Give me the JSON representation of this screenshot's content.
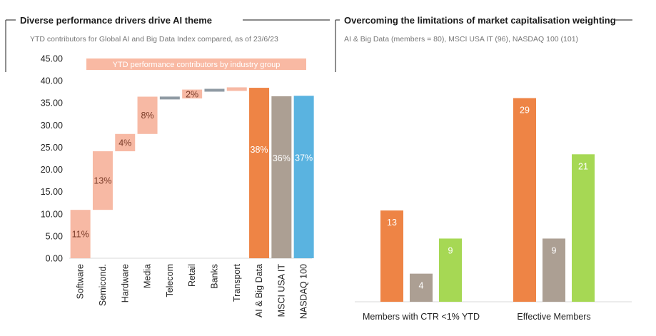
{
  "left_panel": {
    "title": "Diverse performance drivers drive AI theme",
    "subtitle": "YTD contributors for Global AI and Big Data Index compared, as of 23/6/23",
    "banner": "YTD performance contributors by industry group"
  },
  "right_panel": {
    "title": "Overcoming the limitations of market capitalisation weighting",
    "subtitle": "AI & Big Data (members = 80), MSCI USA IT (96), NASDAQ 100 (101)"
  },
  "colors": {
    "contributor": "#f7b9a4",
    "contributor_label": "#7a3b28",
    "ai_big_data": "#ee8445",
    "msci_usa_it": "#ac9f93",
    "nasdaq_100": "#5ab3e0",
    "green_series": "#a6d854",
    "small_bar": "#8f9aa3",
    "banner": "#f9b9a3",
    "bar_label": "#ffffff"
  },
  "chart_data": [
    {
      "type": "bar",
      "subtype": "waterfall",
      "ylim": [
        0,
        45
      ],
      "yticks": [
        "0.00",
        "5.00",
        "10.00",
        "15.00",
        "20.00",
        "25.00",
        "30.00",
        "35.00",
        "40.00",
        "45.00"
      ],
      "categories": [
        "Software",
        "Semicond.",
        "Hardware",
        "Media",
        "Telecom",
        "Retail",
        "Banks",
        "Transport",
        "AI & Big Data",
        "MSCI USA IT",
        "NASDAQ 100"
      ],
      "bars": [
        {
          "category": "Software",
          "start": 0,
          "end": 10.9,
          "label": "11%",
          "kind": "contributor"
        },
        {
          "category": "Semicond.",
          "start": 10.9,
          "end": 24.1,
          "label": "13%",
          "kind": "contributor"
        },
        {
          "category": "Hardware",
          "start": 24.1,
          "end": 28.0,
          "label": "4%",
          "kind": "contributor"
        },
        {
          "category": "Media",
          "start": 28.0,
          "end": 36.4,
          "label": "8%",
          "kind": "contributor"
        },
        {
          "category": "Telecom",
          "start": 35.9,
          "end": 36.3,
          "label": "",
          "kind": "small"
        },
        {
          "category": "Retail",
          "start": 36.0,
          "end": 38.0,
          "label": "2%",
          "kind": "contributor"
        },
        {
          "category": "Banks",
          "start": 37.6,
          "end": 38.1,
          "label": "",
          "kind": "small"
        },
        {
          "category": "Transport",
          "start": 37.7,
          "end": 38.5,
          "label": "",
          "kind": "contributor"
        },
        {
          "category": "AI & Big Data",
          "start": 0,
          "end": 38.4,
          "label": "38%",
          "kind": "ai_big_data"
        },
        {
          "category": "MSCI USA IT",
          "start": 0,
          "end": 36.5,
          "label": "36%",
          "kind": "msci_usa_it"
        },
        {
          "category": "NASDAQ 100",
          "start": 0,
          "end": 36.6,
          "label": "37%",
          "kind": "nasdaq_100"
        }
      ]
    },
    {
      "type": "bar",
      "categories": [
        "Members with CTR <1% YTD",
        "Effective Members"
      ],
      "series": [
        {
          "color_key": "ai_big_data",
          "values": [
            13,
            29
          ]
        },
        {
          "color_key": "msci_usa_it",
          "values": [
            4,
            9
          ]
        },
        {
          "color_key": "green_series",
          "values": [
            9,
            21
          ]
        }
      ],
      "ylim": [
        0,
        32
      ]
    }
  ]
}
